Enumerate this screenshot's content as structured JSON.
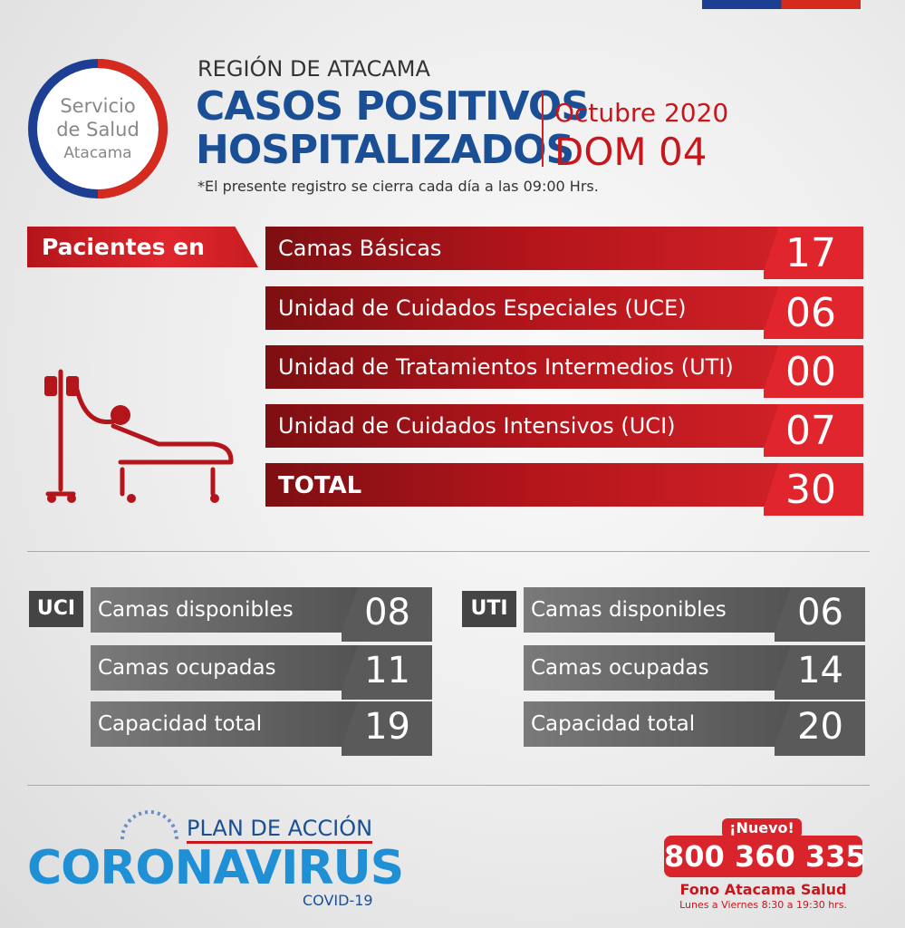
{
  "logo": {
    "line1": "Servicio",
    "line2": "de Salud",
    "line3": "Atacama"
  },
  "header": {
    "region": "REGIÓN DE ATACAMA",
    "title_line1": "CASOS POSITIVOS",
    "title_line2": "HOSPITALIZADOS",
    "month": "Octubre",
    "year": "2020",
    "day": "DOM 04",
    "note": "*El presente registro se cierra cada día a las 09:00 Hrs."
  },
  "patients": {
    "label": "Pacientes en",
    "rows": [
      {
        "label": "Camas Básicas",
        "value": "17"
      },
      {
        "label": "Unidad de Cuidados Especiales (UCE)",
        "value": "06"
      },
      {
        "label": "Unidad de Tratamientos Intermedios (UTI)",
        "value": "00"
      },
      {
        "label": "Unidad de Cuidados Intensivos (UCI)",
        "value": "07"
      }
    ],
    "total": {
      "label": "TOTAL",
      "value": "30"
    }
  },
  "beds": [
    {
      "unit": "UCI",
      "rows": [
        {
          "label": "Camas disponibles",
          "value": "08"
        },
        {
          "label": "Camas ocupadas",
          "value": "11"
        },
        {
          "label": "Capacidad total",
          "value": "19"
        }
      ]
    },
    {
      "unit": "UTI",
      "rows": [
        {
          "label": "Camas disponibles",
          "value": "06"
        },
        {
          "label": "Camas ocupadas",
          "value": "14"
        },
        {
          "label": "Capacidad total",
          "value": "20"
        }
      ]
    }
  ],
  "footer": {
    "plan": "PLAN DE ACCIÓN",
    "campaign": "CORONAVIRUS",
    "sub": "COVID-19",
    "badge": "¡Nuevo!",
    "phone": "800 360 335",
    "phone_label": "Fono Atacama Salud",
    "hours": "Lunes a Viernes 8:30 a 19:30 hrs."
  }
}
